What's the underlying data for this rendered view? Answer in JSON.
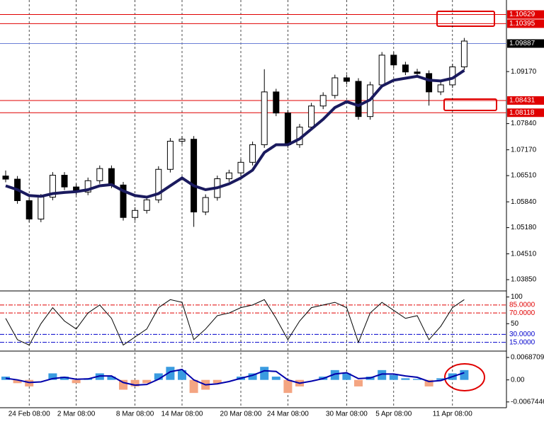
{
  "chart_data": [
    {
      "type": "candlestick",
      "categories": [
        null,
        null,
        "24 Feb 08:00",
        null,
        null,
        null,
        "2 Mar 08:00",
        null,
        null,
        null,
        null,
        "8 Mar 08:00",
        null,
        null,
        null,
        "14 Mar 08:00",
        null,
        null,
        null,
        null,
        "20 Mar 08:00",
        null,
        null,
        null,
        "24 Mar 08:00",
        null,
        null,
        null,
        null,
        "30 Mar 08:00",
        null,
        null,
        null,
        "5 Apr 08:00",
        null,
        null,
        null,
        null,
        "11 Apr 08:00",
        null
      ],
      "ohlc": [
        [
          1.065,
          1.0664,
          1.0634,
          1.0642
        ],
        [
          1.0642,
          1.065,
          1.0579,
          1.0587
        ],
        [
          1.0587,
          1.0595,
          1.0532,
          1.054
        ],
        [
          1.054,
          1.0604,
          1.0532,
          1.0596
        ],
        [
          1.0596,
          1.066,
          1.0588,
          1.0652
        ],
        [
          1.0652,
          1.066,
          1.0614,
          1.0622
        ],
        [
          1.0622,
          1.063,
          1.0601,
          1.0609
        ],
        [
          1.0609,
          1.0646,
          1.0601,
          1.0638
        ],
        [
          1.0638,
          1.0677,
          1.063,
          1.0669
        ],
        [
          1.0669,
          1.0677,
          1.0619,
          1.0627
        ],
        [
          1.0627,
          1.0635,
          1.0536,
          1.0544
        ],
        [
          1.0544,
          1.057,
          1.0536,
          1.0562
        ],
        [
          1.0562,
          1.0597,
          1.0554,
          1.0589
        ],
        [
          1.0589,
          1.0675,
          1.0581,
          1.0667
        ],
        [
          1.0667,
          1.0747,
          1.0659,
          1.0739
        ],
        [
          1.0739,
          1.0752,
          1.0731,
          1.0744
        ],
        [
          1.0744,
          1.0752,
          1.052,
          1.0558
        ],
        [
          1.0558,
          1.0603,
          1.055,
          1.0595
        ],
        [
          1.0595,
          1.0651,
          1.0587,
          1.0643
        ],
        [
          1.0643,
          1.0666,
          1.0635,
          1.0658
        ],
        [
          1.0658,
          1.0693,
          1.065,
          1.0685
        ],
        [
          1.0685,
          1.0738,
          1.0677,
          1.073
        ],
        [
          1.073,
          1.0923,
          1.0722,
          1.0865
        ],
        [
          1.0865,
          1.0873,
          1.0803,
          1.0811
        ],
        [
          1.0811,
          1.0819,
          1.0722,
          1.073
        ],
        [
          1.073,
          1.0783,
          1.0722,
          1.0775
        ],
        [
          1.0775,
          1.0837,
          1.0767,
          1.0829
        ],
        [
          1.0829,
          1.0864,
          1.0821,
          1.0856
        ],
        [
          1.0856,
          1.0909,
          1.0848,
          1.0901
        ],
        [
          1.0901,
          1.0909,
          1.0884,
          1.0892
        ],
        [
          1.0892,
          1.09,
          1.0794,
          1.0802
        ],
        [
          1.0802,
          1.0891,
          1.0794,
          1.0883
        ],
        [
          1.0883,
          1.0967,
          1.0875,
          1.0959
        ],
        [
          1.0959,
          1.0967,
          1.0926,
          1.0934
        ],
        [
          1.0934,
          1.0942,
          1.0908,
          1.0916
        ],
        [
          1.0916,
          1.0924,
          1.0904,
          1.0912
        ],
        [
          1.0912,
          1.092,
          1.083,
          1.0865
        ],
        [
          1.0865,
          1.0891,
          1.0857,
          1.0883
        ],
        [
          1.0883,
          1.0937,
          1.0875,
          1.0929
        ],
        [
          1.0929,
          1.1003,
          1.0921,
          1.0995
        ]
      ],
      "up_color": "#ffffff",
      "down_color": "#000000",
      "ma": {
        "color": "#1a1a5e",
        "values": [
          1.0625,
          1.0615,
          1.06,
          1.0598,
          1.0605,
          1.0608,
          1.061,
          1.0615,
          1.0625,
          1.0628,
          1.0612,
          1.06,
          1.0596,
          1.0605,
          1.0625,
          1.0645,
          1.0625,
          1.0615,
          1.062,
          1.063,
          1.0645,
          1.0665,
          1.071,
          1.073,
          1.073,
          1.0745,
          1.077,
          1.0795,
          1.0825,
          1.084,
          1.083,
          1.0845,
          1.088,
          1.0895,
          1.09,
          1.0905,
          1.0895,
          1.0893,
          1.09,
          1.092
        ]
      },
      "ylim": [
        1.0358,
        1.11
      ],
      "yticks": [
        {
          "value": 1.0385,
          "label": "1.03850"
        },
        {
          "value": 1.0451,
          "label": "1.04510"
        },
        {
          "value": 1.0518,
          "label": "1.05180"
        },
        {
          "value": 1.0584,
          "label": "1.05840"
        },
        {
          "value": 1.0651,
          "label": "1.06510"
        },
        {
          "value": 1.0717,
          "label": "1.07170"
        },
        {
          "value": 1.0784,
          "label": "1.07840"
        },
        {
          "value": 1.0917,
          "label": "1.09170"
        }
      ],
      "levels": [
        {
          "value": 1.10629,
          "label": "1.10629",
          "color": "#e00000"
        },
        {
          "value": 1.10395,
          "label": "1.10395",
          "color": "#e00000"
        },
        {
          "value": 1.09887,
          "label": "1.09887",
          "color": "#000000"
        },
        {
          "value": 1.08431,
          "label": "1.08431",
          "color": "#e00000"
        },
        {
          "value": 1.08118,
          "label": "1.08118",
          "color": "#e00000"
        }
      ]
    },
    {
      "type": "line",
      "values": [
        60,
        20,
        10,
        50,
        80,
        55,
        40,
        70,
        85,
        60,
        10,
        25,
        40,
        80,
        95,
        90,
        20,
        40,
        65,
        70,
        80,
        85,
        95,
        60,
        20,
        55,
        80,
        85,
        90,
        80,
        15,
        70,
        90,
        75,
        60,
        65,
        20,
        45,
        80,
        95
      ],
      "color": "#000000",
      "ylim": [
        0,
        110
      ],
      "yticks": [
        100,
        50
      ],
      "levels": [
        {
          "value": 85,
          "label": "85.0000",
          "color": "#e00000"
        },
        {
          "value": 70,
          "label": "70.0000",
          "color": "#e00000"
        },
        {
          "value": 30,
          "label": "30.0000",
          "color": "#0000cc"
        },
        {
          "value": 15,
          "label": "15.0000",
          "color": "#0000cc"
        }
      ]
    },
    {
      "type": "bar",
      "values": [
        0.001,
        -0.001,
        -0.002,
        0.0,
        0.002,
        0.001,
        -0.001,
        0.0005,
        0.002,
        0.001,
        -0.003,
        -0.002,
        -0.001,
        0.002,
        0.004,
        0.003,
        -0.004,
        -0.003,
        -0.001,
        0.0,
        0.001,
        0.002,
        0.004,
        0.001,
        -0.004,
        -0.002,
        0.0,
        0.001,
        0.003,
        0.002,
        -0.002,
        0.001,
        0.003,
        0.0015,
        0.0005,
        0.0003,
        -0.002,
        0.0005,
        0.002,
        0.003
      ],
      "pos_color": "#3a9be0",
      "neg_color": "#f4a582",
      "line": {
        "color": "#0000aa",
        "values": [
          0.0005,
          0.0,
          -0.0008,
          -0.0006,
          0.0004,
          0.0008,
          0.0002,
          0.0003,
          0.0012,
          0.0012,
          -0.0008,
          -0.0016,
          -0.0014,
          0.0002,
          0.0025,
          0.0032,
          0.0,
          -0.0015,
          -0.0012,
          -0.0005,
          0.0005,
          0.0014,
          0.0028,
          0.0026,
          0.0,
          -0.001,
          -0.0004,
          0.0004,
          0.0018,
          0.0022,
          0.0004,
          0.0006,
          0.0018,
          0.0018,
          0.0012,
          0.0008,
          -0.0005,
          -0.0002,
          0.001,
          0.0022
        ]
      },
      "ylim": [
        -0.0083,
        0.0086
      ],
      "yticks": [
        0.0068709,
        {
          "value": 0,
          "label": "0.00"
        },
        -0.0067446
      ]
    }
  ]
}
